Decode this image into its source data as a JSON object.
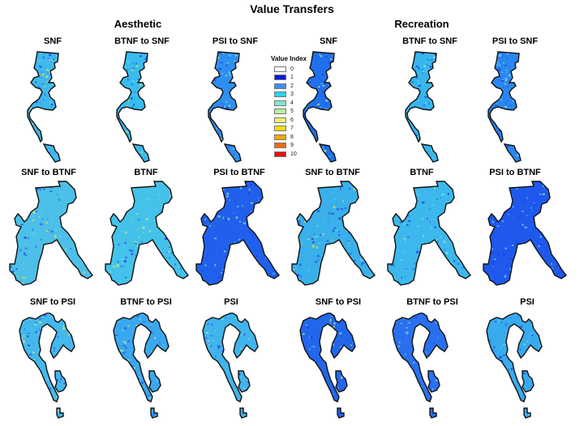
{
  "title": "Value Transfers",
  "groups": [
    {
      "title": "Aesthetic"
    },
    {
      "title": "Recreation"
    }
  ],
  "legend": {
    "title": "Value Index",
    "items": [
      {
        "label": "0",
        "color": "#ffffff"
      },
      {
        "label": "1",
        "color": "#0a18e6"
      },
      {
        "label": "2",
        "color": "#3d8ef0"
      },
      {
        "label": "3",
        "color": "#28d4ee"
      },
      {
        "label": "4",
        "color": "#7fe8d0"
      },
      {
        "label": "5",
        "color": "#b8f0a0"
      },
      {
        "label": "6",
        "color": "#eef070"
      },
      {
        "label": "7",
        "color": "#f5e000"
      },
      {
        "label": "8",
        "color": "#f5a800"
      },
      {
        "label": "9",
        "color": "#f06a10"
      },
      {
        "label": "10",
        "color": "#e81010"
      }
    ]
  },
  "rows": [
    {
      "region": "SNF",
      "panels": [
        {
          "label": "SNF",
          "group": "Aesthetic",
          "fill": "#3fb8ee",
          "accent": "#d8e860"
        },
        {
          "label": "BTNF to SNF",
          "group": "Aesthetic",
          "fill": "#38bdee",
          "accent": "#c8ea70"
        },
        {
          "label": "PSI to SNF",
          "group": "Aesthetic",
          "fill": "#2e8ff0",
          "accent": "#a8e0a0"
        },
        {
          "label": "SNF",
          "group": "Recreation",
          "fill": "#2070ee",
          "accent": "#d8e860"
        },
        {
          "label": "BTNF to SNF",
          "group": "Recreation",
          "fill": "#36b6ee",
          "accent": "#a0e0c0"
        },
        {
          "label": "PSI to SNF",
          "group": "Recreation",
          "fill": "#2a86f0",
          "accent": "#98dcc8"
        }
      ]
    },
    {
      "region": "BTNF",
      "panels": [
        {
          "label": "SNF to BTNF",
          "group": "Aesthetic",
          "fill": "#4cc0e8",
          "accent": "#e8e050"
        },
        {
          "label": "BTNF",
          "group": "Aesthetic",
          "fill": "#44c2ea",
          "accent": "#b8ea90"
        },
        {
          "label": "PSI to BTNF",
          "group": "Aesthetic",
          "fill": "#2060ec",
          "accent": "#90d8c8"
        },
        {
          "label": "SNF to BTNF",
          "group": "Recreation",
          "fill": "#3ab0ea",
          "accent": "#e8e050"
        },
        {
          "label": "BTNF",
          "group": "Recreation",
          "fill": "#3cb8ec",
          "accent": "#a8e4b0"
        },
        {
          "label": "PSI to BTNF",
          "group": "Recreation",
          "fill": "#1e58ec",
          "accent": "#80c8e0"
        }
      ]
    },
    {
      "region": "PSI",
      "panels": [
        {
          "label": "SNF to PSI",
          "group": "Aesthetic",
          "fill": "#44b8ec",
          "accent": "#d8ea60"
        },
        {
          "label": "BTNF to PSI",
          "group": "Aesthetic",
          "fill": "#3aa8ee",
          "accent": "#a8e4a8"
        },
        {
          "label": "PSI",
          "group": "Aesthetic",
          "fill": "#40b4ec",
          "accent": "#b0e890"
        },
        {
          "label": "SNF to PSI",
          "group": "Recreation",
          "fill": "#2266ec",
          "accent": "#d8e860"
        },
        {
          "label": "BTNF to PSI",
          "group": "Recreation",
          "fill": "#2a70ee",
          "accent": "#80c8f0"
        },
        {
          "label": "PSI",
          "group": "Recreation",
          "fill": "#38aaee",
          "accent": "#90d8d0"
        }
      ]
    }
  ]
}
